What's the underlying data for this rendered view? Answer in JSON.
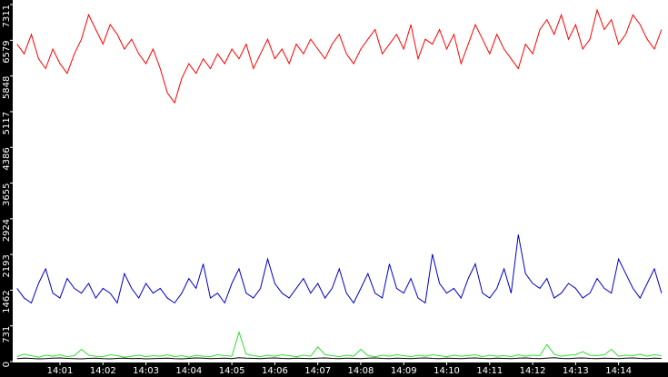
{
  "chart_data": {
    "type": "line",
    "x": [
      0,
      10,
      20,
      30,
      40,
      50,
      60,
      70,
      80,
      90,
      100,
      110,
      120,
      130,
      140,
      150,
      160,
      170,
      180,
      190,
      200,
      210,
      220,
      230,
      240,
      250,
      260,
      270,
      280,
      290,
      300,
      310,
      320,
      330,
      340,
      350,
      360,
      370,
      380,
      390,
      400,
      410,
      420,
      430,
      440,
      450,
      460,
      470,
      480,
      490,
      500,
      510,
      520,
      530,
      540,
      550,
      560,
      570,
      580,
      590,
      600,
      610,
      620,
      630,
      640,
      650,
      660,
      670,
      680,
      690,
      700,
      710,
      720,
      730,
      740,
      750,
      760,
      770,
      780,
      790,
      800,
      810,
      820,
      830,
      840,
      850,
      860,
      870,
      880,
      890,
      900
    ],
    "xlim": [
      -6,
      909
    ],
    "xticks": [
      {
        "value": 60,
        "label": "14:01"
      },
      {
        "value": 120,
        "label": "14:02"
      },
      {
        "value": 180,
        "label": "14:03"
      },
      {
        "value": 240,
        "label": "14:04"
      },
      {
        "value": 300,
        "label": "14:05"
      },
      {
        "value": 360,
        "label": "14:06"
      },
      {
        "value": 420,
        "label": "14:07"
      },
      {
        "value": 480,
        "label": "14:08"
      },
      {
        "value": 540,
        "label": "14:09"
      },
      {
        "value": 600,
        "label": "14:10"
      },
      {
        "value": 660,
        "label": "14:11"
      },
      {
        "value": 720,
        "label": "14:12"
      },
      {
        "value": 780,
        "label": "14:13"
      },
      {
        "value": 840,
        "label": "14:14"
      }
    ],
    "ylim": [
      0,
      7311
    ],
    "yticks": [
      0,
      731,
      1462,
      2193,
      2924,
      3655,
      4386,
      5117,
      5848,
      6579,
      7311
    ],
    "series": [
      {
        "color": "#ff0000",
        "values": [
          6500,
          6300,
          6700,
          6200,
          6000,
          6400,
          6100,
          5900,
          6300,
          6600,
          7100,
          6800,
          6500,
          6900,
          6700,
          6400,
          6600,
          6300,
          6100,
          6400,
          6000,
          5500,
          5300,
          5800,
          6100,
          5900,
          6200,
          6000,
          6300,
          6100,
          6400,
          6200,
          6500,
          6000,
          6300,
          6600,
          6200,
          6400,
          6100,
          6500,
          6300,
          6600,
          6400,
          6200,
          6500,
          6700,
          6300,
          6100,
          6400,
          6600,
          6800,
          6300,
          6500,
          6700,
          6400,
          6900,
          6200,
          6600,
          6500,
          6800,
          6400,
          6700,
          6100,
          6500,
          6900,
          6600,
          6300,
          6700,
          6400,
          6200,
          6000,
          6500,
          6300,
          6800,
          7000,
          6700,
          7100,
          6600,
          6900,
          6400,
          6600,
          7200,
          6800,
          7000,
          6500,
          6700,
          7100,
          6900,
          6600,
          6400,
          6800
        ]
      },
      {
        "color": "#0000cc",
        "values": [
          1500,
          1300,
          1200,
          1600,
          1900,
          1400,
          1300,
          1700,
          1500,
          1400,
          1600,
          1300,
          1500,
          1400,
          1200,
          1800,
          1500,
          1300,
          1600,
          1400,
          1500,
          1300,
          1200,
          1400,
          1700,
          1500,
          2000,
          1300,
          1400,
          1200,
          1600,
          1900,
          1400,
          1300,
          1500,
          2100,
          1600,
          1400,
          1300,
          1500,
          1700,
          1400,
          1600,
          1300,
          1500,
          1900,
          1400,
          1200,
          1500,
          1800,
          1400,
          1300,
          2000,
          1500,
          1400,
          1700,
          1300,
          1200,
          2200,
          1600,
          1400,
          1500,
          1300,
          1700,
          2000,
          1400,
          1300,
          1500,
          1900,
          1400,
          2600,
          1800,
          1600,
          1500,
          1700,
          1300,
          1400,
          1600,
          1500,
          1300,
          1400,
          1700,
          1500,
          1400,
          2100,
          1800,
          1500,
          1300,
          1600,
          1900,
          1400
        ]
      },
      {
        "color": "#33dd33",
        "values": [
          100,
          150,
          120,
          90,
          130,
          110,
          140,
          100,
          120,
          250,
          130,
          110,
          100,
          140,
          120,
          90,
          110,
          130,
          100,
          120,
          110,
          140,
          100,
          120,
          90,
          130,
          110,
          100,
          140,
          120,
          110,
          600,
          150,
          120,
          100,
          130,
          110,
          140,
          120,
          100,
          130,
          110,
          300,
          140,
          120,
          100,
          130,
          110,
          250,
          120,
          100,
          130,
          110,
          140,
          120,
          100,
          130,
          110,
          140,
          120,
          100,
          130,
          110,
          120,
          140,
          100,
          130,
          110,
          120,
          100,
          140,
          110,
          130,
          120,
          350,
          150,
          110,
          130,
          140,
          200,
          130,
          120,
          140,
          250,
          110,
          130,
          120,
          150,
          110,
          140,
          120
        ]
      },
      {
        "color": "#000000",
        "values": [
          60,
          70,
          65,
          55,
          60,
          70,
          75,
          65,
          60,
          55,
          65,
          70,
          60,
          55,
          65,
          70,
          60,
          65,
          55,
          60,
          65,
          70,
          60,
          55,
          65,
          75,
          70,
          60,
          65,
          70,
          60,
          80,
          70,
          65,
          60,
          70,
          75,
          65,
          60,
          70,
          65,
          60,
          70,
          75,
          65,
          60,
          70,
          65,
          60,
          70,
          75,
          65,
          60,
          70,
          65,
          60,
          70,
          75,
          65,
          60,
          70,
          65,
          60,
          70,
          75,
          65,
          60,
          70,
          65,
          60,
          70,
          75,
          65,
          60,
          70,
          80,
          65,
          60,
          70,
          75,
          65,
          60,
          70,
          65,
          60,
          70,
          75,
          65,
          60,
          70,
          65
        ]
      }
    ]
  }
}
